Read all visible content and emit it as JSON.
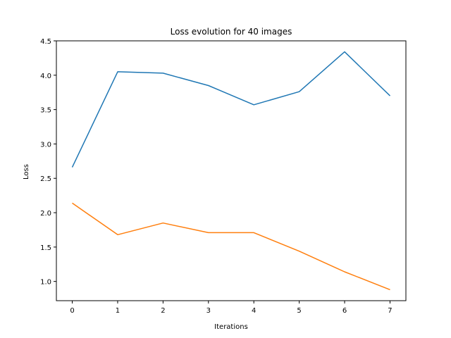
{
  "chart_data": {
    "type": "line",
    "title": "Loss evolution for 40 images",
    "xlabel": "Iterations",
    "ylabel": "Loss",
    "x": [
      0,
      1,
      2,
      3,
      4,
      5,
      6,
      7
    ],
    "xlim": [
      -0.35,
      7.35
    ],
    "ylim": [
      0.72,
      4.5
    ],
    "xticks": [
      "0",
      "1",
      "2",
      "3",
      "4",
      "5",
      "6",
      "7"
    ],
    "yticks": [
      "1.0",
      "1.5",
      "2.0",
      "2.5",
      "3.0",
      "3.5",
      "4.0",
      "4.5"
    ],
    "grid": false,
    "series": [
      {
        "color": "#1f77b4",
        "values": [
          2.66,
          4.05,
          4.03,
          3.85,
          3.57,
          3.76,
          4.34,
          3.7
        ]
      },
      {
        "color": "#ff7f0e",
        "values": [
          2.14,
          1.68,
          1.85,
          1.71,
          1.71,
          1.44,
          1.14,
          0.88
        ]
      }
    ]
  }
}
